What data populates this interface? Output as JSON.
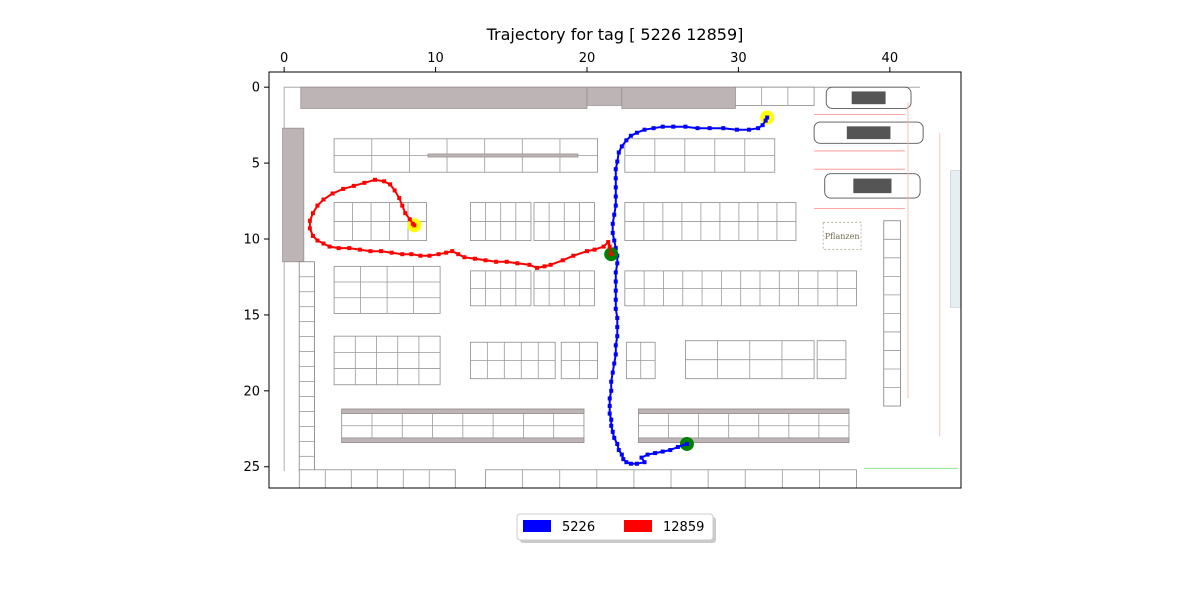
{
  "chart_data": {
    "type": "line",
    "title": "Trajectory for tag [ 5226 12859]",
    "xlabel": "",
    "ylabel": "",
    "xlim": [
      -1,
      44.7
    ],
    "ylim": [
      26.4,
      -1
    ],
    "y_inverted": true,
    "x_ticks": [
      0,
      10,
      20,
      30,
      40
    ],
    "y_ticks": [
      0,
      5,
      10,
      15,
      20,
      25
    ],
    "x_axis_position": "top",
    "grid": false,
    "legend_position": "bottom-center",
    "background": "floor-plan-image",
    "floor_plan_label": "Pflanzen",
    "series": [
      {
        "name": "5226",
        "color": "#0000ff",
        "start_marker_color": "#008000",
        "end_marker_color": "#ffff00",
        "points": [
          [
            26.6,
            23.5
          ],
          [
            26.0,
            23.7
          ],
          [
            25.5,
            23.9
          ],
          [
            25.0,
            24.0
          ],
          [
            24.5,
            24.1
          ],
          [
            24.0,
            24.2
          ],
          [
            23.6,
            24.4
          ],
          [
            23.8,
            24.7
          ],
          [
            23.3,
            24.8
          ],
          [
            22.9,
            24.8
          ],
          [
            22.6,
            24.7
          ],
          [
            22.4,
            24.5
          ],
          [
            22.3,
            24.2
          ],
          [
            22.1,
            23.9
          ],
          [
            22.0,
            23.5
          ],
          [
            21.8,
            23.1
          ],
          [
            21.7,
            22.7
          ],
          [
            21.6,
            22.3
          ],
          [
            21.6,
            21.9
          ],
          [
            21.5,
            21.5
          ],
          [
            21.5,
            21.0
          ],
          [
            21.5,
            20.5
          ],
          [
            21.6,
            20.0
          ],
          [
            21.6,
            19.4
          ],
          [
            21.7,
            18.8
          ],
          [
            21.8,
            18.2
          ],
          [
            21.9,
            17.6
          ],
          [
            21.9,
            17.0
          ],
          [
            22.0,
            16.4
          ],
          [
            22.0,
            15.8
          ],
          [
            22.0,
            15.2
          ],
          [
            21.9,
            14.6
          ],
          [
            21.9,
            14.0
          ],
          [
            21.9,
            13.4
          ],
          [
            21.9,
            12.8
          ],
          [
            21.9,
            12.2
          ],
          [
            22.0,
            11.6
          ],
          [
            22.0,
            11.1
          ],
          [
            21.9,
            10.6
          ],
          [
            21.8,
            10.1
          ],
          [
            21.7,
            9.6
          ],
          [
            21.7,
            9.0
          ],
          [
            21.8,
            8.4
          ],
          [
            21.9,
            7.8
          ],
          [
            21.9,
            7.2
          ],
          [
            21.9,
            6.6
          ],
          [
            21.9,
            6.0
          ],
          [
            21.9,
            5.4
          ],
          [
            22.0,
            4.9
          ],
          [
            22.1,
            4.3
          ],
          [
            22.3,
            3.9
          ],
          [
            22.6,
            3.5
          ],
          [
            22.9,
            3.2
          ],
          [
            23.3,
            3.0
          ],
          [
            23.8,
            2.8
          ],
          [
            24.4,
            2.7
          ],
          [
            25.0,
            2.6
          ],
          [
            25.7,
            2.6
          ],
          [
            26.5,
            2.6
          ],
          [
            27.3,
            2.7
          ],
          [
            28.1,
            2.7
          ],
          [
            29.0,
            2.7
          ],
          [
            29.9,
            2.8
          ],
          [
            30.7,
            2.8
          ],
          [
            31.3,
            2.7
          ],
          [
            31.6,
            2.5
          ],
          [
            31.8,
            2.2
          ],
          [
            31.9,
            2.0
          ]
        ]
      },
      {
        "name": "12859",
        "color": "#ff0000",
        "start_marker_color": "#008000",
        "end_marker_color": "#ffff00",
        "points": [
          [
            21.6,
            11.0
          ],
          [
            21.5,
            10.5
          ],
          [
            21.4,
            10.2
          ],
          [
            21.1,
            10.5
          ],
          [
            20.5,
            10.7
          ],
          [
            20.0,
            10.8
          ],
          [
            19.1,
            11.1
          ],
          [
            18.4,
            11.4
          ],
          [
            17.6,
            11.7
          ],
          [
            17.2,
            11.8
          ],
          [
            16.7,
            11.9
          ],
          [
            16.2,
            11.7
          ],
          [
            15.4,
            11.6
          ],
          [
            14.7,
            11.5
          ],
          [
            14.0,
            11.5
          ],
          [
            13.3,
            11.4
          ],
          [
            12.6,
            11.3
          ],
          [
            11.9,
            11.2
          ],
          [
            11.5,
            11.0
          ],
          [
            11.1,
            10.8
          ],
          [
            10.7,
            10.9
          ],
          [
            10.2,
            11.0
          ],
          [
            9.6,
            11.1
          ],
          [
            9.0,
            11.1
          ],
          [
            8.4,
            11.0
          ],
          [
            7.8,
            11.0
          ],
          [
            7.1,
            10.9
          ],
          [
            6.4,
            10.8
          ],
          [
            5.7,
            10.8
          ],
          [
            5.0,
            10.7
          ],
          [
            4.3,
            10.6
          ],
          [
            3.6,
            10.6
          ],
          [
            3.0,
            10.5
          ],
          [
            2.6,
            10.3
          ],
          [
            2.2,
            10.1
          ],
          [
            1.9,
            9.8
          ],
          [
            1.7,
            9.3
          ],
          [
            1.7,
            8.8
          ],
          [
            1.9,
            8.3
          ],
          [
            2.2,
            7.8
          ],
          [
            2.6,
            7.4
          ],
          [
            3.2,
            7.0
          ],
          [
            3.9,
            6.7
          ],
          [
            4.6,
            6.5
          ],
          [
            5.3,
            6.3
          ],
          [
            6.0,
            6.1
          ],
          [
            6.6,
            6.2
          ],
          [
            7.0,
            6.4
          ],
          [
            7.3,
            6.8
          ],
          [
            7.6,
            7.3
          ],
          [
            7.8,
            7.8
          ],
          [
            8.0,
            8.3
          ],
          [
            8.3,
            8.7
          ],
          [
            8.5,
            9.0
          ],
          [
            8.6,
            9.1
          ]
        ]
      }
    ]
  },
  "legend": {
    "items": [
      {
        "label": "5226",
        "color": "#0000ff"
      },
      {
        "label": "12859",
        "color": "#ff0000"
      }
    ]
  }
}
